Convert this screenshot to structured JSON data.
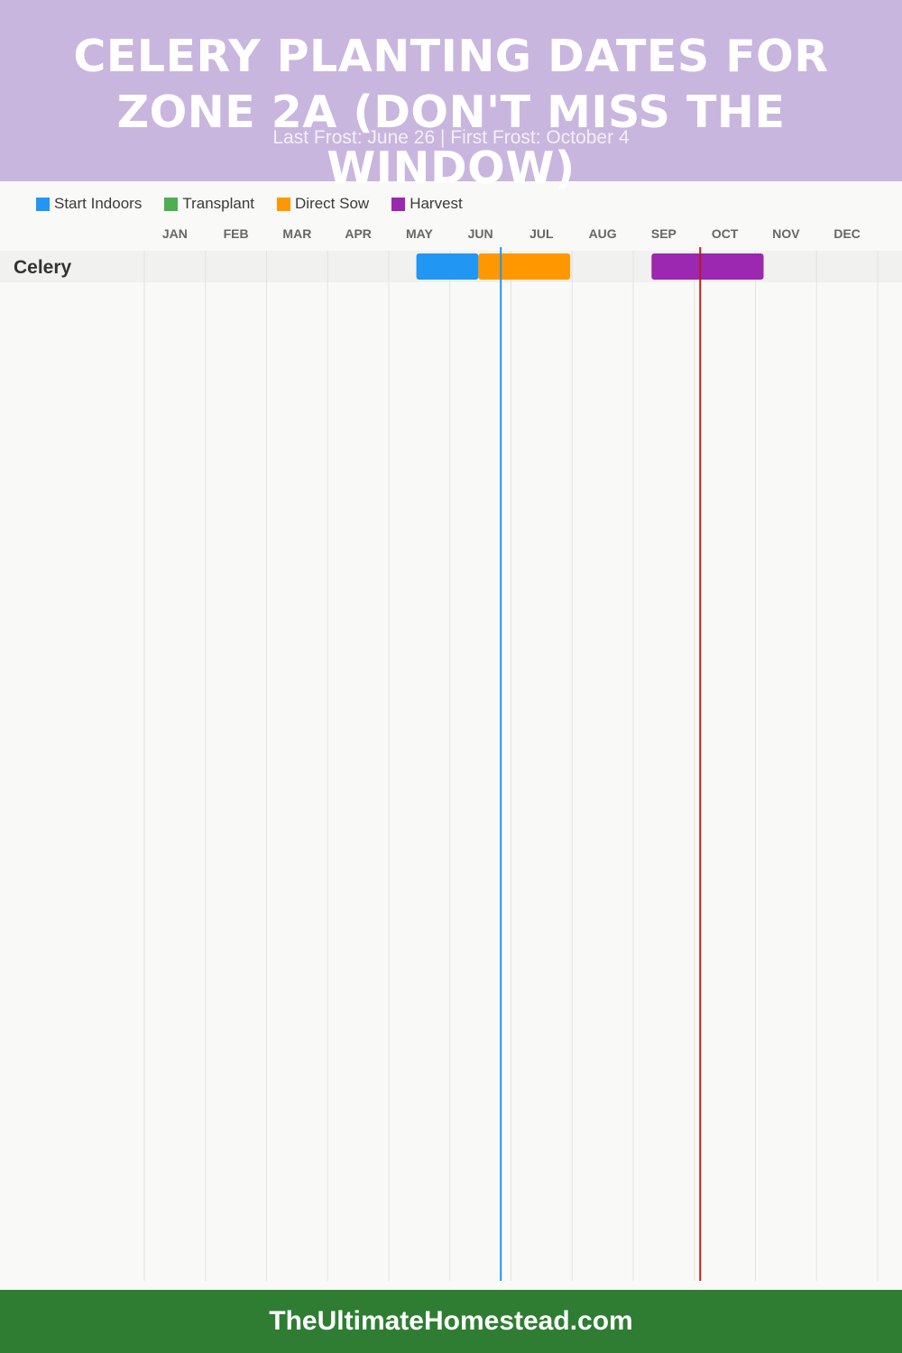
{
  "header": {
    "title": "CELERY PLANTING DATES FOR ZONE 2A (DON'T MISS THE WINDOW)",
    "subtitle": "Last Frost: June 26 | First Frost: October 4"
  },
  "legend": [
    {
      "label": "Start Indoors",
      "color": "#2196f3"
    },
    {
      "label": "Transplant",
      "color": "#4caf50"
    },
    {
      "label": "Direct Sow",
      "color": "#ff9800"
    },
    {
      "label": "Harvest",
      "color": "#9c27b0"
    }
  ],
  "chart_data": {
    "type": "gantt",
    "months": [
      "JAN",
      "FEB",
      "MAR",
      "APR",
      "MAY",
      "JUN",
      "JUL",
      "AUG",
      "SEP",
      "OCT",
      "NOV",
      "DEC"
    ],
    "rows": [
      {
        "crop": "Celery",
        "bars": [
          {
            "phase": "Start Indoors",
            "start": "May 15",
            "end": "Jun 15",
            "color": "#2196f3"
          },
          {
            "phase": "Direct Sow",
            "start": "Jun 15",
            "end": "Jul 31",
            "color": "#ff9800"
          },
          {
            "phase": "Harvest",
            "start": "Sep 10",
            "end": "Nov 5",
            "color": "#9c27b0"
          }
        ]
      }
    ],
    "frost_lines": [
      {
        "name": "Last Frost",
        "date": "Jun 26",
        "color": "#2196f3"
      },
      {
        "name": "First Frost",
        "date": "Oct 4",
        "color": "#b71c1c"
      }
    ],
    "grid": true
  },
  "footer": {
    "text": "TheUltimateHomestead.com"
  }
}
